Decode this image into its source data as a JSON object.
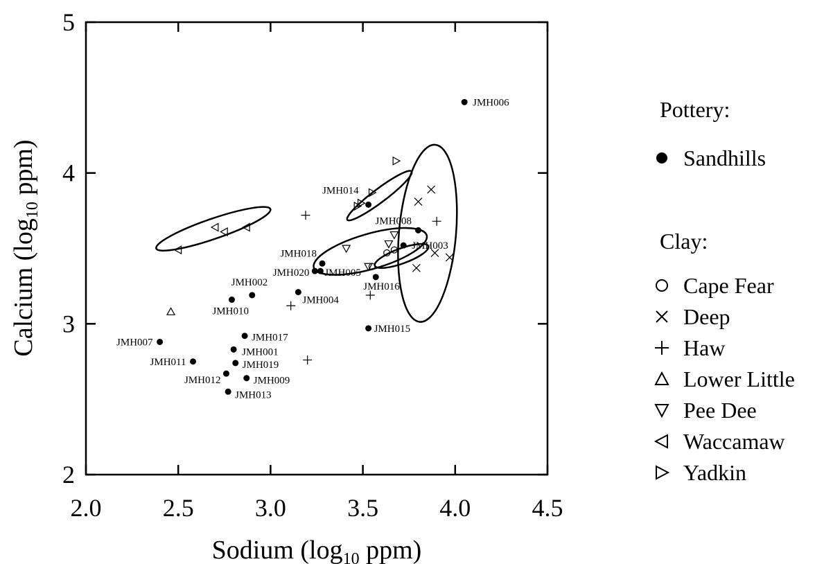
{
  "chart_data": {
    "type": "scatter",
    "xlabel": "Sodium (log10 ppm)",
    "ylabel": "Calcium (log10 ppm)",
    "xlim": [
      2.0,
      4.5
    ],
    "ylim": [
      2.0,
      5.0
    ],
    "x_ticks": [
      "2.0",
      "2.5",
      "3.0",
      "3.5",
      "4.0",
      "4.5"
    ],
    "y_ticks": [
      "2",
      "3",
      "4",
      "5"
    ],
    "grid": false,
    "legend_position": "right",
    "legend_pottery_title": "Pottery:",
    "legend_clay_title": "Clay:",
    "series": [
      {
        "name": "Sandhills",
        "group": "pottery",
        "marker": "filled-circle",
        "points": [
          {
            "label": "JMH006",
            "x": 4.05,
            "y": 4.47
          },
          {
            "label": "JMH014",
            "x": 3.53,
            "y": 3.79
          },
          {
            "label": "JMH008",
            "x": 3.8,
            "y": 3.62
          },
          {
            "label": "JMH003",
            "x": 3.72,
            "y": 3.52
          },
          {
            "label": "JMH018",
            "x": 3.28,
            "y": 3.4
          },
          {
            "label": "JMH020",
            "x": 3.24,
            "y": 3.35
          },
          {
            "label": "JMH005",
            "x": 3.27,
            "y": 3.35
          },
          {
            "label": "JMH016",
            "x": 3.57,
            "y": 3.31
          },
          {
            "label": "JMH002",
            "x": 2.9,
            "y": 3.19
          },
          {
            "label": "JMH004",
            "x": 3.15,
            "y": 3.21
          },
          {
            "label": "JMH010",
            "x": 2.79,
            "y": 3.16
          },
          {
            "label": "JMH015",
            "x": 3.53,
            "y": 2.97
          },
          {
            "label": "JMH017",
            "x": 2.86,
            "y": 2.92
          },
          {
            "label": "JMH007",
            "x": 2.4,
            "y": 2.88
          },
          {
            "label": "JMH001",
            "x": 2.8,
            "y": 2.83
          },
          {
            "label": "JMH011",
            "x": 2.58,
            "y": 2.75
          },
          {
            "label": "JMH019",
            "x": 2.81,
            "y": 2.74
          },
          {
            "label": "JMH012",
            "x": 2.76,
            "y": 2.67
          },
          {
            "label": "JMH009",
            "x": 2.87,
            "y": 2.64
          },
          {
            "label": "JMH013",
            "x": 2.77,
            "y": 2.55
          }
        ]
      },
      {
        "name": "Cape Fear",
        "group": "clay",
        "marker": "open-circle",
        "points": [
          {
            "x": 3.63,
            "y": 3.47
          },
          {
            "x": 3.67,
            "y": 3.49
          },
          {
            "x": 3.55,
            "y": 3.38
          }
        ]
      },
      {
        "name": "Deep",
        "group": "clay",
        "marker": "x",
        "points": [
          {
            "x": 3.87,
            "y": 3.89
          },
          {
            "x": 3.8,
            "y": 3.81
          },
          {
            "x": 3.89,
            "y": 3.47
          },
          {
            "x": 3.97,
            "y": 3.44
          },
          {
            "x": 3.79,
            "y": 3.37
          }
        ]
      },
      {
        "name": "Haw",
        "group": "clay",
        "marker": "plus",
        "points": [
          {
            "x": 3.19,
            "y": 3.72
          },
          {
            "x": 3.9,
            "y": 3.68
          },
          {
            "x": 3.11,
            "y": 3.12
          },
          {
            "x": 3.54,
            "y": 3.19
          },
          {
            "x": 3.2,
            "y": 2.76
          }
        ]
      },
      {
        "name": "Lower Little",
        "group": "clay",
        "marker": "triangle-up",
        "points": [
          {
            "x": 2.46,
            "y": 3.08
          }
        ]
      },
      {
        "name": "Pee Dee",
        "group": "clay",
        "marker": "triangle-down",
        "points": [
          {
            "x": 3.41,
            "y": 3.5
          },
          {
            "x": 3.64,
            "y": 3.53
          },
          {
            "x": 3.67,
            "y": 3.59
          },
          {
            "x": 3.53,
            "y": 3.38
          }
        ]
      },
      {
        "name": "Waccamaw",
        "group": "clay",
        "marker": "triangle-left",
        "points": [
          {
            "x": 2.5,
            "y": 3.49
          },
          {
            "x": 2.7,
            "y": 3.64
          },
          {
            "x": 2.75,
            "y": 3.61
          },
          {
            "x": 2.87,
            "y": 3.64
          }
        ]
      },
      {
        "name": "Yadkin",
        "group": "clay",
        "marker": "triangle-right",
        "points": [
          {
            "x": 3.68,
            "y": 4.08
          },
          {
            "x": 3.55,
            "y": 3.87
          },
          {
            "x": 3.49,
            "y": 3.8
          },
          {
            "x": 3.47,
            "y": 3.78
          }
        ]
      }
    ],
    "ellipses": [
      {
        "cx": 2.69,
        "cy": 3.63,
        "rx": 0.36,
        "ry": 0.06,
        "angle_deg": 19
      },
      {
        "cx": 3.59,
        "cy": 3.85,
        "rx": 0.24,
        "ry": 0.04,
        "angle_deg": 37
      },
      {
        "cx": 3.54,
        "cy": 3.48,
        "rx": 0.35,
        "ry": 0.105,
        "angle_deg": 16
      },
      {
        "cx": 3.71,
        "cy": 3.45,
        "rx": 0.17,
        "ry": 0.045,
        "angle_deg": 20
      },
      {
        "cx": 3.85,
        "cy": 3.6,
        "rx": 0.17,
        "ry": 0.53,
        "angle_deg": -5
      }
    ]
  },
  "legend": {
    "pottery_title": "Pottery:",
    "clay_title": "Clay:",
    "items": [
      {
        "label": "Sandhills",
        "marker": "filled-circle"
      },
      {
        "label": "Cape Fear",
        "marker": "open-circle"
      },
      {
        "label": "Deep",
        "marker": "x"
      },
      {
        "label": "Haw",
        "marker": "plus"
      },
      {
        "label": "Lower Little",
        "marker": "triangle-up"
      },
      {
        "label": "Pee Dee",
        "marker": "triangle-down"
      },
      {
        "label": "Waccamaw",
        "marker": "triangle-left"
      },
      {
        "label": "Yadkin",
        "marker": "triangle-right"
      }
    ]
  }
}
